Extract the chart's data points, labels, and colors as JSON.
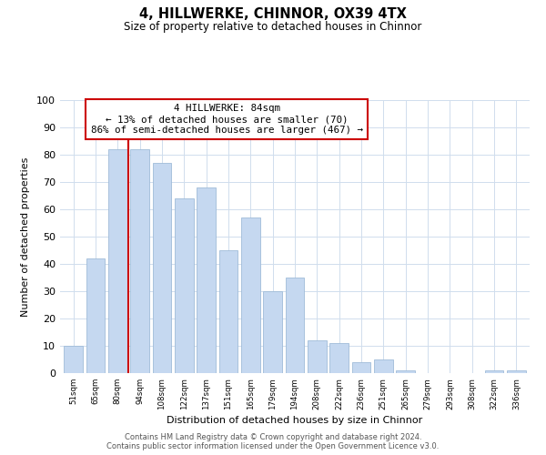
{
  "title": "4, HILLWERKE, CHINNOR, OX39 4TX",
  "subtitle": "Size of property relative to detached houses in Chinnor",
  "xlabel": "Distribution of detached houses by size in Chinnor",
  "ylabel": "Number of detached properties",
  "bar_labels": [
    "51sqm",
    "65sqm",
    "80sqm",
    "94sqm",
    "108sqm",
    "122sqm",
    "137sqm",
    "151sqm",
    "165sqm",
    "179sqm",
    "194sqm",
    "208sqm",
    "222sqm",
    "236sqm",
    "251sqm",
    "265sqm",
    "279sqm",
    "293sqm",
    "308sqm",
    "322sqm",
    "336sqm"
  ],
  "bar_values": [
    10,
    42,
    82,
    82,
    77,
    64,
    68,
    45,
    57,
    30,
    35,
    12,
    11,
    4,
    5,
    1,
    0,
    0,
    0,
    1,
    1
  ],
  "bar_color": "#c5d8f0",
  "bar_edge_color": "#a0bcd8",
  "vline_color": "#cc0000",
  "vline_pos": 2.5,
  "annotation_title": "4 HILLWERKE: 84sqm",
  "annotation_line1": "← 13% of detached houses are smaller (70)",
  "annotation_line2": "86% of semi-detached houses are larger (467) →",
  "annotation_box_color": "#ffffff",
  "annotation_box_edge": "#cc0000",
  "ylim": [
    0,
    100
  ],
  "yticks": [
    0,
    10,
    20,
    30,
    40,
    50,
    60,
    70,
    80,
    90,
    100
  ],
  "footer_line1": "Contains HM Land Registry data © Crown copyright and database right 2024.",
  "footer_line2": "Contains public sector information licensed under the Open Government Licence v3.0.",
  "background_color": "#ffffff",
  "grid_color": "#d0dded"
}
